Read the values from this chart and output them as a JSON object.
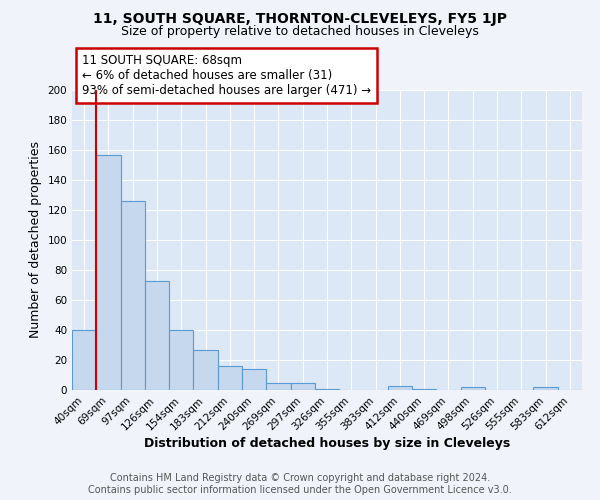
{
  "title": "11, SOUTH SQUARE, THORNTON-CLEVELEYS, FY5 1JP",
  "subtitle": "Size of property relative to detached houses in Cleveleys",
  "xlabel": "Distribution of detached houses by size in Cleveleys",
  "ylabel": "Number of detached properties",
  "bar_labels": [
    "40sqm",
    "69sqm",
    "97sqm",
    "126sqm",
    "154sqm",
    "183sqm",
    "212sqm",
    "240sqm",
    "269sqm",
    "297sqm",
    "326sqm",
    "355sqm",
    "383sqm",
    "412sqm",
    "440sqm",
    "469sqm",
    "498sqm",
    "526sqm",
    "555sqm",
    "583sqm",
    "612sqm"
  ],
  "bar_values": [
    40,
    157,
    126,
    73,
    40,
    27,
    16,
    14,
    5,
    5,
    1,
    0,
    0,
    3,
    1,
    0,
    2,
    0,
    0,
    2,
    0
  ],
  "bar_color": "#c5d8ed",
  "bar_edge_color": "#5b9bd5",
  "vline_x_index": 1,
  "vline_color": "#cc0000",
  "annotation_title": "11 SOUTH SQUARE: 68sqm",
  "annotation_line1": "← 6% of detached houses are smaller (31)",
  "annotation_line2": "93% of semi-detached houses are larger (471) →",
  "annotation_box_color": "#ffffff",
  "annotation_box_edge": "#cc0000",
  "ylim": [
    0,
    200
  ],
  "yticks": [
    0,
    20,
    40,
    60,
    80,
    100,
    120,
    140,
    160,
    180,
    200
  ],
  "footer_line1": "Contains HM Land Registry data © Crown copyright and database right 2024.",
  "footer_line2": "Contains public sector information licensed under the Open Government Licence v3.0.",
  "bg_color": "#f0f4fa",
  "plot_bg_color": "#dce8f5",
  "grid_color": "#ffffff",
  "title_fontsize": 10,
  "subtitle_fontsize": 9,
  "axis_label_fontsize": 9,
  "tick_fontsize": 7.5,
  "footer_fontsize": 7,
  "annotation_fontsize": 8.5
}
